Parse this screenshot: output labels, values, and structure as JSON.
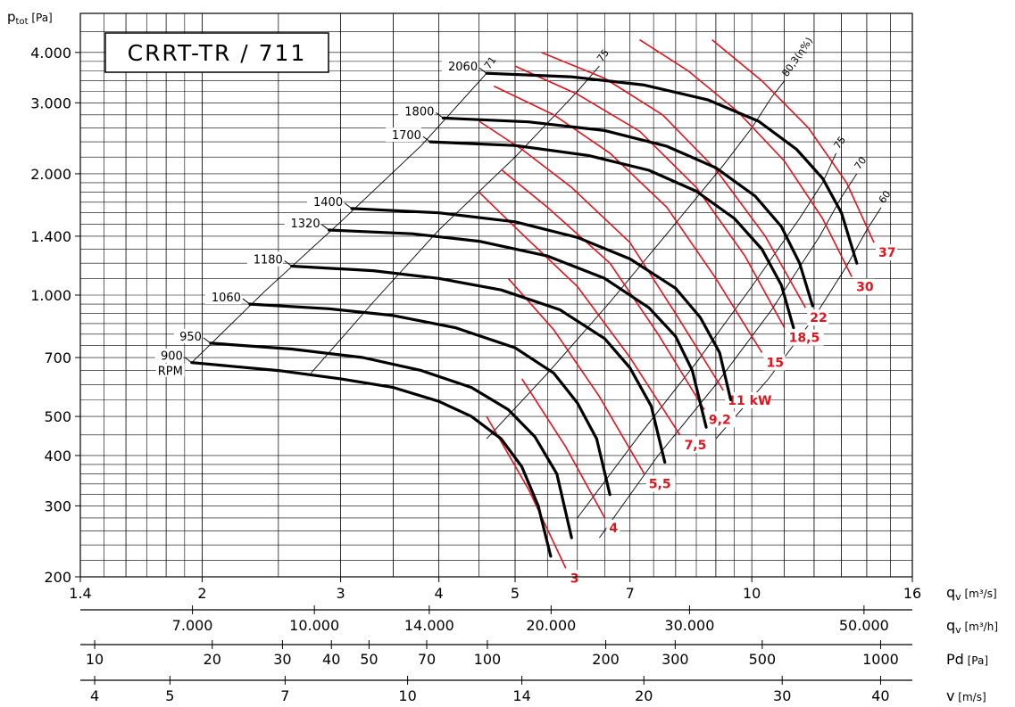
{
  "chart_data": {
    "type": "line",
    "title": "CRRT-TR / 711",
    "y_axis": {
      "label_main": "p",
      "label_sub": "tot",
      "label_unit": "[Pa]",
      "scale": "log",
      "range": [
        200,
        5000
      ],
      "ticks": [
        {
          "value": 200,
          "label": "200"
        },
        {
          "value": 300,
          "label": "300"
        },
        {
          "value": 400,
          "label": "400"
        },
        {
          "value": 500,
          "label": "500"
        },
        {
          "value": 700,
          "label": "700"
        },
        {
          "value": 1000,
          "label": "1.000"
        },
        {
          "value": 1400,
          "label": "1.400"
        },
        {
          "value": 2000,
          "label": "2.000"
        },
        {
          "value": 3000,
          "label": "3.000"
        },
        {
          "value": 4000,
          "label": "4.000"
        }
      ]
    },
    "x_axis": {
      "label_main": "q",
      "label_sub": "v",
      "label_unit": "[m³/s]",
      "scale": "log",
      "range": [
        1.4,
        16
      ],
      "ticks": [
        {
          "value": 1.4,
          "label": "1.4"
        },
        {
          "value": 2,
          "label": "2"
        },
        {
          "value": 3,
          "label": "3"
        },
        {
          "value": 4,
          "label": "4"
        },
        {
          "value": 5,
          "label": "5"
        },
        {
          "value": 7,
          "label": "7"
        },
        {
          "value": 10,
          "label": "10"
        },
        {
          "value": 16,
          "label": "16"
        }
      ]
    },
    "secondary_axes": [
      {
        "label_main": "q",
        "label_sub": "v",
        "label_unit": "[m³/h]",
        "ticks": [
          {
            "q": 1.944,
            "label": "7.000"
          },
          {
            "q": 2.778,
            "label": "10.000"
          },
          {
            "q": 3.889,
            "label": "14.000"
          },
          {
            "q": 5.556,
            "label": "20.000"
          },
          {
            "q": 8.333,
            "label": "30.000"
          },
          {
            "q": 13.889,
            "label": "50.000"
          }
        ]
      },
      {
        "label_main": "Pd",
        "label_sub": "",
        "label_unit": "[Pa]",
        "ticks": [
          {
            "q": 1.46,
            "label": "10"
          },
          {
            "q": 2.06,
            "label": "20"
          },
          {
            "q": 2.53,
            "label": "30"
          },
          {
            "q": 2.92,
            "label": "40"
          },
          {
            "q": 3.26,
            "label": "50"
          },
          {
            "q": 3.86,
            "label": "70"
          },
          {
            "q": 4.61,
            "label": "100"
          },
          {
            "q": 6.52,
            "label": "200"
          },
          {
            "q": 7.99,
            "label": "300"
          },
          {
            "q": 10.31,
            "label": "500"
          },
          {
            "q": 14.58,
            "label": "1000"
          }
        ]
      },
      {
        "label_main": "v",
        "label_sub": "",
        "label_unit": "[m/s]",
        "ticks": [
          {
            "q": 1.46,
            "label": "4"
          },
          {
            "q": 1.82,
            "label": "5"
          },
          {
            "q": 2.55,
            "label": "7"
          },
          {
            "q": 3.65,
            "label": "10"
          },
          {
            "q": 5.1,
            "label": "14"
          },
          {
            "q": 7.29,
            "label": "20"
          },
          {
            "q": 10.93,
            "label": "30"
          },
          {
            "q": 14.58,
            "label": "40"
          }
        ]
      }
    ],
    "rpm_unit": "RPM",
    "rpm_curves": [
      {
        "label": "900",
        "points": [
          [
            1.94,
            680
          ],
          [
            2.5,
            650
          ],
          [
            3.0,
            620
          ],
          [
            3.5,
            590
          ],
          [
            4.0,
            545
          ],
          [
            4.4,
            500
          ],
          [
            4.8,
            440
          ],
          [
            5.1,
            375
          ],
          [
            5.35,
            300
          ],
          [
            5.55,
            225
          ]
        ]
      },
      {
        "label": "950",
        "points": [
          [
            2.05,
            760
          ],
          [
            2.6,
            735
          ],
          [
            3.2,
            700
          ],
          [
            3.8,
            650
          ],
          [
            4.4,
            590
          ],
          [
            4.9,
            520
          ],
          [
            5.3,
            445
          ],
          [
            5.65,
            360
          ],
          [
            5.9,
            250
          ]
        ]
      },
      {
        "label": "1060",
        "points": [
          [
            2.3,
            950
          ],
          [
            2.9,
            925
          ],
          [
            3.5,
            890
          ],
          [
            4.2,
            830
          ],
          [
            5.0,
            740
          ],
          [
            5.6,
            640
          ],
          [
            6.0,
            540
          ],
          [
            6.35,
            440
          ],
          [
            6.6,
            320
          ]
        ]
      },
      {
        "label": "1180",
        "points": [
          [
            2.6,
            1180
          ],
          [
            3.3,
            1150
          ],
          [
            4.0,
            1100
          ],
          [
            4.8,
            1030
          ],
          [
            5.7,
            920
          ],
          [
            6.5,
            780
          ],
          [
            7.0,
            660
          ],
          [
            7.45,
            530
          ],
          [
            7.75,
            385
          ]
        ]
      },
      {
        "label": "1320",
        "points": [
          [
            2.9,
            1450
          ],
          [
            3.7,
            1420
          ],
          [
            4.5,
            1360
          ],
          [
            5.5,
            1250
          ],
          [
            6.5,
            1100
          ],
          [
            7.4,
            930
          ],
          [
            8.0,
            790
          ],
          [
            8.4,
            650
          ],
          [
            8.75,
            470
          ]
        ]
      },
      {
        "label": "1400",
        "points": [
          [
            3.1,
            1640
          ],
          [
            4.0,
            1600
          ],
          [
            5.0,
            1520
          ],
          [
            6.0,
            1390
          ],
          [
            7.0,
            1230
          ],
          [
            8.0,
            1040
          ],
          [
            8.6,
            880
          ],
          [
            9.1,
            720
          ],
          [
            9.4,
            550
          ]
        ]
      },
      {
        "label": "1700",
        "points": [
          [
            3.9,
            2400
          ],
          [
            5.0,
            2350
          ],
          [
            6.2,
            2220
          ],
          [
            7.4,
            2040
          ],
          [
            8.5,
            1810
          ],
          [
            9.5,
            1550
          ],
          [
            10.3,
            1300
          ],
          [
            10.9,
            1060
          ],
          [
            11.3,
            830
          ]
        ]
      },
      {
        "label": "1800",
        "points": [
          [
            4.05,
            2750
          ],
          [
            5.2,
            2690
          ],
          [
            6.5,
            2560
          ],
          [
            7.8,
            2340
          ],
          [
            9.0,
            2070
          ],
          [
            10.1,
            1760
          ],
          [
            10.9,
            1480
          ],
          [
            11.5,
            1200
          ],
          [
            11.95,
            940
          ]
        ]
      },
      {
        "label": "2060",
        "points": [
          [
            4.6,
            3550
          ],
          [
            5.9,
            3480
          ],
          [
            7.3,
            3320
          ],
          [
            8.8,
            3050
          ],
          [
            10.2,
            2700
          ],
          [
            11.4,
            2300
          ],
          [
            12.3,
            1950
          ],
          [
            13.0,
            1600
          ],
          [
            13.6,
            1200
          ]
        ]
      }
    ],
    "power_unit": "kW",
    "power_lines": [
      {
        "label": "3",
        "points": [
          [
            5.8,
            210
          ],
          [
            5.2,
            330
          ],
          [
            4.6,
            500
          ]
        ]
      },
      {
        "label": "4",
        "points": [
          [
            6.5,
            280
          ],
          [
            5.8,
            420
          ],
          [
            5.1,
            620
          ]
        ]
      },
      {
        "label": "5,5",
        "points": [
          [
            7.3,
            360
          ],
          [
            6.4,
            560
          ],
          [
            5.6,
            820
          ],
          [
            4.9,
            1100
          ]
        ]
      },
      {
        "label": "7,5",
        "points": [
          [
            8.1,
            450
          ],
          [
            7.0,
            700
          ],
          [
            6.0,
            1050
          ],
          [
            5.1,
            1420
          ],
          [
            4.5,
            1800
          ]
        ]
      },
      {
        "label": "9,2",
        "points": [
          [
            8.7,
            520
          ],
          [
            7.6,
            800
          ],
          [
            6.6,
            1200
          ],
          [
            5.5,
            1650
          ],
          [
            4.8,
            2050
          ]
        ]
      },
      {
        "label": "11 kW",
        "points": [
          [
            9.2,
            580
          ],
          [
            8.0,
            900
          ],
          [
            7.0,
            1350
          ],
          [
            5.9,
            1850
          ],
          [
            5.1,
            2300
          ],
          [
            4.5,
            2700
          ]
        ]
      },
      {
        "label": "15",
        "points": [
          [
            10.3,
            720
          ],
          [
            9.0,
            1100
          ],
          [
            7.8,
            1650
          ],
          [
            6.6,
            2250
          ],
          [
            5.6,
            2800
          ],
          [
            4.7,
            3300
          ]
        ]
      },
      {
        "label": "18,5",
        "points": [
          [
            11.0,
            830
          ],
          [
            9.8,
            1250
          ],
          [
            8.5,
            1850
          ],
          [
            7.2,
            2550
          ],
          [
            6.0,
            3150
          ],
          [
            5.0,
            3700
          ]
        ]
      },
      {
        "label": "22",
        "points": [
          [
            11.7,
            930
          ],
          [
            10.4,
            1400
          ],
          [
            9.0,
            2050
          ],
          [
            7.7,
            2800
          ],
          [
            6.5,
            3450
          ],
          [
            5.4,
            4000
          ]
        ]
      },
      {
        "label": "30",
        "points": [
          [
            13.4,
            1110
          ],
          [
            12.3,
            1550
          ],
          [
            11.0,
            2150
          ],
          [
            9.6,
            2850
          ],
          [
            8.3,
            3600
          ],
          [
            7.2,
            4300
          ]
        ]
      },
      {
        "label": "37",
        "points": [
          [
            14.3,
            1350
          ],
          [
            13.2,
            1900
          ],
          [
            11.8,
            2600
          ],
          [
            10.3,
            3400
          ],
          [
            8.9,
            4300
          ]
        ]
      }
    ],
    "efficiency_unit": "(ɳ%)",
    "efficiency_lines": [
      {
        "label": "71",
        "points": [
          [
            1.94,
            680
          ],
          [
            2.4,
            1020
          ],
          [
            3.0,
            1520
          ],
          [
            3.8,
            2350
          ],
          [
            4.6,
            3550
          ]
        ]
      },
      {
        "label": "75",
        "points": [
          [
            2.75,
            640
          ],
          [
            3.3,
            960
          ],
          [
            4.0,
            1450
          ],
          [
            5.0,
            2200
          ],
          [
            6.0,
            3200
          ],
          [
            6.4,
            3700
          ]
        ]
      },
      {
        "label": "80,3",
        "points": [
          [
            4.6,
            440
          ],
          [
            5.5,
            640
          ],
          [
            6.6,
            960
          ],
          [
            7.8,
            1420
          ],
          [
            9.2,
            2100
          ],
          [
            10.0,
            2600
          ],
          [
            10.6,
            3100
          ],
          [
            11.0,
            3400
          ]
        ]
      },
      {
        "label": "75",
        "points": [
          [
            6.0,
            280
          ],
          [
            7.2,
            450
          ],
          [
            8.5,
            680
          ],
          [
            10.0,
            1050
          ],
          [
            11.5,
            1550
          ],
          [
            12.3,
            1900
          ],
          [
            12.8,
            2250
          ]
        ]
      },
      {
        "label": "70",
        "points": [
          [
            6.4,
            250
          ],
          [
            7.6,
            400
          ],
          [
            9.0,
            600
          ],
          [
            10.6,
            920
          ],
          [
            12.2,
            1400
          ],
          [
            13.0,
            1750
          ],
          [
            13.6,
            2000
          ]
        ]
      },
      {
        "label": "60",
        "points": [
          [
            9.0,
            440
          ],
          [
            10.5,
            620
          ],
          [
            12.0,
            880
          ],
          [
            13.2,
            1180
          ],
          [
            14.0,
            1450
          ],
          [
            14.6,
            1650
          ]
        ]
      }
    ]
  }
}
